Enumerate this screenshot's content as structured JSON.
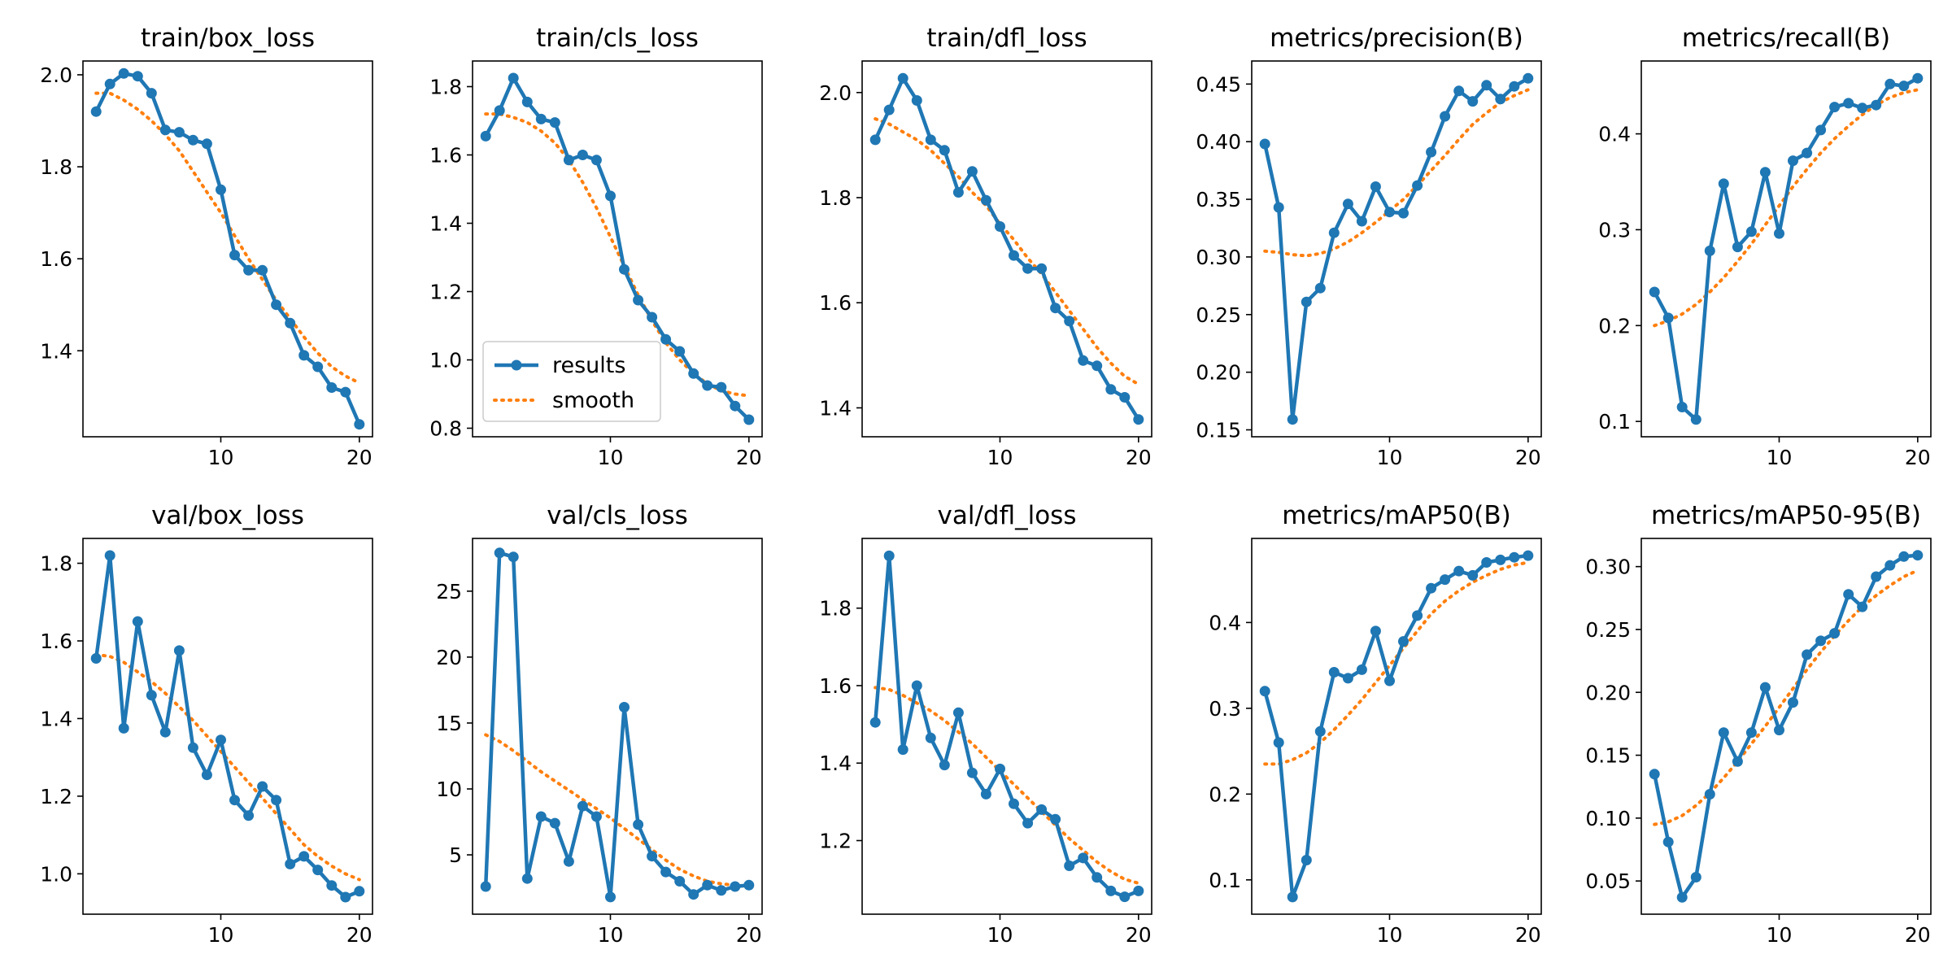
{
  "chart_data": [
    {
      "type": "line",
      "title": "train/box_loss",
      "x": [
        1,
        2,
        3,
        4,
        5,
        6,
        7,
        8,
        9,
        10,
        11,
        12,
        13,
        14,
        15,
        16,
        17,
        18,
        19,
        20
      ],
      "series": [
        {
          "name": "results",
          "values": [
            1.92,
            1.98,
            2.003,
            1.997,
            1.96,
            1.88,
            1.875,
            1.858,
            1.85,
            1.75,
            1.608,
            1.575,
            1.575,
            1.5,
            1.46,
            1.39,
            1.365,
            1.32,
            1.31,
            1.24
          ]
        },
        {
          "name": "smooth",
          "values": [
            1.96,
            1.96,
            1.945,
            1.925,
            1.9,
            1.87,
            1.835,
            1.79,
            1.745,
            1.7,
            1.65,
            1.6,
            1.555,
            1.51,
            1.47,
            1.43,
            1.395,
            1.365,
            1.345,
            1.33
          ]
        }
      ],
      "xlim": [
        0.05,
        20.95
      ],
      "ylim": [
        1.213,
        2.03
      ],
      "xticks": [
        10,
        20
      ],
      "yticks": [
        1.4,
        1.6,
        1.8,
        2.0
      ],
      "ytick_labels": [
        "1.4",
        "1.6",
        "1.8",
        "2.0"
      ]
    },
    {
      "type": "line",
      "title": "train/cls_loss",
      "x": [
        1,
        2,
        3,
        4,
        5,
        6,
        7,
        8,
        9,
        10,
        11,
        12,
        13,
        14,
        15,
        16,
        17,
        18,
        19,
        20
      ],
      "series": [
        {
          "name": "results",
          "values": [
            1.655,
            1.73,
            1.825,
            1.755,
            1.705,
            1.695,
            1.585,
            1.6,
            1.585,
            1.48,
            1.265,
            1.175,
            1.125,
            1.06,
            1.025,
            0.96,
            0.925,
            0.92,
            0.865,
            0.825
          ]
        },
        {
          "name": "smooth",
          "values": [
            1.72,
            1.72,
            1.71,
            1.695,
            1.67,
            1.635,
            1.585,
            1.52,
            1.445,
            1.36,
            1.275,
            1.19,
            1.115,
            1.05,
            1.0,
            0.96,
            0.93,
            0.91,
            0.9,
            0.895
          ]
        }
      ],
      "xlim": [
        0.05,
        20.95
      ],
      "ylim": [
        0.775,
        1.875
      ],
      "xticks": [
        10,
        20
      ],
      "yticks": [
        0.8,
        1.0,
        1.2,
        1.4,
        1.6,
        1.8
      ],
      "ytick_labels": [
        "0.8",
        "1.0",
        "1.2",
        "1.4",
        "1.6",
        "1.8"
      ],
      "legend": {
        "position": "lower-left",
        "entries": [
          "results",
          "smooth"
        ]
      }
    },
    {
      "type": "line",
      "title": "train/dfl_loss",
      "x": [
        1,
        2,
        3,
        4,
        5,
        6,
        7,
        8,
        9,
        10,
        11,
        12,
        13,
        14,
        15,
        16,
        17,
        18,
        19,
        20
      ],
      "series": [
        {
          "name": "results",
          "values": [
            1.91,
            1.967,
            2.027,
            1.985,
            1.91,
            1.89,
            1.81,
            1.85,
            1.795,
            1.745,
            1.69,
            1.665,
            1.665,
            1.59,
            1.565,
            1.49,
            1.48,
            1.435,
            1.42,
            1.378
          ]
        },
        {
          "name": "smooth",
          "values": [
            1.95,
            1.94,
            1.925,
            1.91,
            1.89,
            1.865,
            1.84,
            1.81,
            1.785,
            1.75,
            1.72,
            1.685,
            1.655,
            1.62,
            1.585,
            1.55,
            1.515,
            1.485,
            1.46,
            1.445
          ]
        }
      ],
      "xlim": [
        0.05,
        20.95
      ],
      "ylim": [
        1.345,
        2.06
      ],
      "xticks": [
        10,
        20
      ],
      "yticks": [
        1.4,
        1.6,
        1.8,
        2.0
      ],
      "ytick_labels": [
        "1.4",
        "1.6",
        "1.8",
        "2.0"
      ]
    },
    {
      "type": "line",
      "title": "metrics/precision(B)",
      "x": [
        1,
        2,
        3,
        4,
        5,
        6,
        7,
        8,
        9,
        10,
        11,
        12,
        13,
        14,
        15,
        16,
        17,
        18,
        19,
        20
      ],
      "series": [
        {
          "name": "results",
          "values": [
            0.398,
            0.343,
            0.159,
            0.261,
            0.273,
            0.321,
            0.346,
            0.331,
            0.361,
            0.339,
            0.338,
            0.362,
            0.391,
            0.422,
            0.444,
            0.435,
            0.449,
            0.437,
            0.448,
            0.455
          ]
        },
        {
          "name": "smooth",
          "values": [
            0.305,
            0.304,
            0.302,
            0.301,
            0.303,
            0.307,
            0.313,
            0.321,
            0.33,
            0.34,
            0.35,
            0.362,
            0.375,
            0.388,
            0.402,
            0.415,
            0.425,
            0.434,
            0.44,
            0.445
          ]
        }
      ],
      "xlim": [
        0.05,
        20.95
      ],
      "ylim": [
        0.144,
        0.47
      ],
      "xticks": [
        10,
        20
      ],
      "yticks": [
        0.15,
        0.2,
        0.25,
        0.3,
        0.35,
        0.4,
        0.45
      ],
      "ytick_labels": [
        "0.15",
        "0.20",
        "0.25",
        "0.30",
        "0.35",
        "0.40",
        "0.45"
      ]
    },
    {
      "type": "line",
      "title": "metrics/recall(B)",
      "x": [
        1,
        2,
        3,
        4,
        5,
        6,
        7,
        8,
        9,
        10,
        11,
        12,
        13,
        14,
        15,
        16,
        17,
        18,
        19,
        20
      ],
      "series": [
        {
          "name": "results",
          "values": [
            0.235,
            0.208,
            0.115,
            0.102,
            0.278,
            0.348,
            0.282,
            0.298,
            0.36,
            0.296,
            0.372,
            0.38,
            0.404,
            0.428,
            0.432,
            0.427,
            0.43,
            0.452,
            0.45,
            0.458
          ]
        },
        {
          "name": "smooth",
          "values": [
            0.2,
            0.205,
            0.212,
            0.222,
            0.235,
            0.25,
            0.267,
            0.285,
            0.305,
            0.325,
            0.345,
            0.363,
            0.38,
            0.395,
            0.408,
            0.42,
            0.43,
            0.438,
            0.443,
            0.446
          ]
        }
      ],
      "xlim": [
        0.05,
        20.95
      ],
      "ylim": [
        0.084,
        0.476
      ],
      "xticks": [
        10,
        20
      ],
      "yticks": [
        0.1,
        0.2,
        0.3,
        0.4
      ],
      "ytick_labels": [
        "0.1",
        "0.2",
        "0.3",
        "0.4"
      ]
    },
    {
      "type": "line",
      "title": "val/box_loss",
      "x": [
        1,
        2,
        3,
        4,
        5,
        6,
        7,
        8,
        9,
        10,
        11,
        12,
        13,
        14,
        15,
        16,
        17,
        18,
        19,
        20
      ],
      "series": [
        {
          "name": "results",
          "values": [
            1.555,
            1.82,
            1.375,
            1.65,
            1.46,
            1.365,
            1.575,
            1.325,
            1.255,
            1.345,
            1.19,
            1.15,
            1.225,
            1.19,
            1.025,
            1.045,
            1.01,
            0.97,
            0.94,
            0.955
          ]
        },
        {
          "name": "smooth",
          "values": [
            1.565,
            1.56,
            1.545,
            1.52,
            1.495,
            1.465,
            1.43,
            1.395,
            1.355,
            1.315,
            1.275,
            1.235,
            1.195,
            1.155,
            1.115,
            1.075,
            1.045,
            1.02,
            1.0,
            0.985
          ]
        }
      ],
      "xlim": [
        0.05,
        20.95
      ],
      "ylim": [
        0.896,
        1.864
      ],
      "xticks": [
        10,
        20
      ],
      "yticks": [
        1.0,
        1.2,
        1.4,
        1.6,
        1.8
      ],
      "ytick_labels": [
        "1.0",
        "1.2",
        "1.4",
        "1.6",
        "1.8"
      ]
    },
    {
      "type": "line",
      "title": "val/cls_loss",
      "x": [
        1,
        2,
        3,
        4,
        5,
        6,
        7,
        8,
        9,
        10,
        11,
        12,
        13,
        14,
        15,
        16,
        17,
        18,
        19,
        20
      ],
      "series": [
        {
          "name": "results",
          "values": [
            2.6,
            27.9,
            27.6,
            3.2,
            7.9,
            7.4,
            4.5,
            8.7,
            7.9,
            1.8,
            16.2,
            7.3,
            4.9,
            3.7,
            3.0,
            2.0,
            2.7,
            2.3,
            2.6,
            2.7
          ]
        },
        {
          "name": "smooth",
          "values": [
            14.1,
            13.6,
            12.9,
            12.1,
            11.3,
            10.6,
            9.9,
            9.2,
            8.5,
            7.8,
            7.0,
            6.2,
            5.4,
            4.6,
            3.9,
            3.4,
            3.0,
            2.8,
            2.7,
            2.6
          ]
        }
      ],
      "xlim": [
        0.05,
        20.95
      ],
      "ylim": [
        0.5,
        29.0
      ],
      "xticks": [
        10,
        20
      ],
      "yticks": [
        5,
        10,
        15,
        20,
        25
      ],
      "ytick_labels": [
        "5",
        "10",
        "15",
        "20",
        "25"
      ]
    },
    {
      "type": "line",
      "title": "val/dfl_loss",
      "x": [
        1,
        2,
        3,
        4,
        5,
        6,
        7,
        8,
        9,
        10,
        11,
        12,
        13,
        14,
        15,
        16,
        17,
        18,
        19,
        20
      ],
      "series": [
        {
          "name": "results",
          "values": [
            1.505,
            1.935,
            1.435,
            1.6,
            1.465,
            1.395,
            1.53,
            1.375,
            1.32,
            1.385,
            1.295,
            1.245,
            1.28,
            1.255,
            1.135,
            1.155,
            1.105,
            1.07,
            1.055,
            1.07
          ]
        },
        {
          "name": "smooth",
          "values": [
            1.595,
            1.59,
            1.575,
            1.555,
            1.535,
            1.51,
            1.48,
            1.45,
            1.415,
            1.38,
            1.345,
            1.31,
            1.275,
            1.24,
            1.205,
            1.175,
            1.145,
            1.12,
            1.1,
            1.09
          ]
        }
      ],
      "xlim": [
        0.05,
        20.95
      ],
      "ylim": [
        1.01,
        1.98
      ],
      "xticks": [
        10,
        20
      ],
      "yticks": [
        1.2,
        1.4,
        1.6,
        1.8
      ],
      "ytick_labels": [
        "1.2",
        "1.4",
        "1.6",
        "1.8"
      ]
    },
    {
      "type": "line",
      "title": "metrics/mAP50(B)",
      "x": [
        1,
        2,
        3,
        4,
        5,
        6,
        7,
        8,
        9,
        10,
        11,
        12,
        13,
        14,
        15,
        16,
        17,
        18,
        19,
        20
      ],
      "series": [
        {
          "name": "results",
          "values": [
            0.32,
            0.26,
            0.08,
            0.123,
            0.273,
            0.342,
            0.335,
            0.345,
            0.39,
            0.332,
            0.378,
            0.408,
            0.44,
            0.45,
            0.46,
            0.455,
            0.47,
            0.473,
            0.476,
            0.478
          ]
        },
        {
          "name": "smooth",
          "values": [
            0.235,
            0.235,
            0.24,
            0.248,
            0.26,
            0.275,
            0.292,
            0.31,
            0.33,
            0.35,
            0.37,
            0.39,
            0.41,
            0.425,
            0.437,
            0.447,
            0.455,
            0.462,
            0.467,
            0.47
          ]
        }
      ],
      "xlim": [
        0.05,
        20.95
      ],
      "ylim": [
        0.06,
        0.498
      ],
      "xticks": [
        10,
        20
      ],
      "yticks": [
        0.1,
        0.2,
        0.3,
        0.4
      ],
      "ytick_labels": [
        "0.1",
        "0.2",
        "0.3",
        "0.4"
      ]
    },
    {
      "type": "line",
      "title": "metrics/mAP50-95(B)",
      "x": [
        1,
        2,
        3,
        4,
        5,
        6,
        7,
        8,
        9,
        10,
        11,
        12,
        13,
        14,
        15,
        16,
        17,
        18,
        19,
        20
      ],
      "series": [
        {
          "name": "results",
          "values": [
            0.135,
            0.081,
            0.037,
            0.053,
            0.119,
            0.168,
            0.145,
            0.168,
            0.204,
            0.17,
            0.192,
            0.23,
            0.241,
            0.247,
            0.278,
            0.268,
            0.292,
            0.301,
            0.308,
            0.309
          ]
        },
        {
          "name": "smooth",
          "values": [
            0.095,
            0.097,
            0.102,
            0.11,
            0.12,
            0.132,
            0.145,
            0.159,
            0.173,
            0.188,
            0.203,
            0.218,
            0.232,
            0.245,
            0.257,
            0.268,
            0.277,
            0.285,
            0.292,
            0.297
          ]
        }
      ],
      "xlim": [
        0.05,
        20.95
      ],
      "ylim": [
        0.0236,
        0.3224
      ],
      "xticks": [
        10,
        20
      ],
      "yticks": [
        0.05,
        0.1,
        0.15,
        0.2,
        0.25,
        0.3
      ],
      "ytick_labels": [
        "0.05",
        "0.10",
        "0.15",
        "0.20",
        "0.25",
        "0.30"
      ]
    }
  ],
  "colors": {
    "results": "#1f77b4",
    "smooth": "#ff7f0e",
    "axes": "#000000",
    "background": "#ffffff",
    "legend_border": "#cccccc"
  }
}
